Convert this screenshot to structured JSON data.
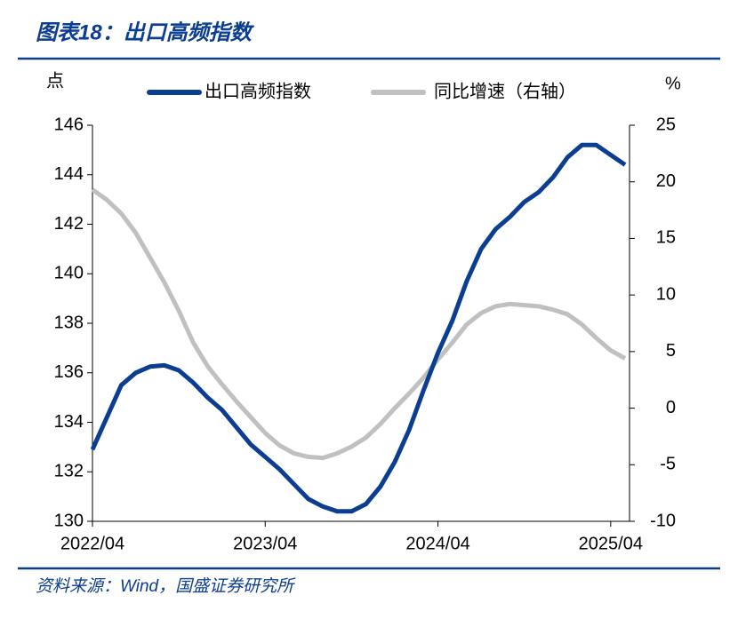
{
  "chart_data": {
    "type": "line",
    "title": "图表18：出口高频指数",
    "source": "资料来源：Wind，国盛证券研究所",
    "ylabel": "点",
    "y2label": "%",
    "x": [
      "2022/04",
      "2022/05",
      "2022/06",
      "2022/07",
      "2022/08",
      "2022/09",
      "2022/10",
      "2022/11",
      "2022/12",
      "2023/01",
      "2023/02",
      "2023/03",
      "2023/04",
      "2023/05",
      "2023/06",
      "2023/07",
      "2023/08",
      "2023/09",
      "2023/10",
      "2023/11",
      "2023/12",
      "2024/01",
      "2024/02",
      "2024/03",
      "2024/04",
      "2024/05",
      "2024/06",
      "2024/07",
      "2024/08",
      "2024/09",
      "2024/10",
      "2024/11",
      "2024/12",
      "2025/01",
      "2025/02",
      "2025/03",
      "2025/04",
      "2025/05"
    ],
    "xticks": [
      "2022/04",
      "2023/04",
      "2024/04",
      "2025/04"
    ],
    "series": [
      {
        "name": "出口高频指数",
        "color": "#0b3d91",
        "values": [
          132.9,
          134.2,
          135.5,
          136.0,
          136.25,
          136.3,
          136.1,
          135.6,
          135.0,
          134.5,
          133.8,
          133.1,
          132.6,
          132.1,
          131.5,
          130.9,
          130.6,
          130.4,
          130.4,
          130.7,
          131.4,
          132.4,
          133.7,
          135.3,
          136.8,
          138.1,
          139.7,
          141.0,
          141.8,
          142.3,
          142.9,
          143.3,
          143.9,
          144.7,
          145.2,
          145.2,
          144.8,
          144.4
        ]
      },
      {
        "name": "同比增速（右轴）",
        "color": "#c0c0c0",
        "axis": "y2",
        "values": [
          19.3,
          18.4,
          17.2,
          15.5,
          13.3,
          11.1,
          8.6,
          5.8,
          3.7,
          2.1,
          0.6,
          -0.8,
          -2.2,
          -3.3,
          -4.0,
          -4.3,
          -4.4,
          -4.0,
          -3.4,
          -2.6,
          -1.4,
          0.0,
          1.3,
          2.7,
          4.3,
          5.8,
          7.4,
          8.4,
          9.0,
          9.2,
          9.1,
          9.0,
          8.7,
          8.3,
          7.4,
          6.2,
          5.1,
          4.4
        ]
      }
    ],
    "ylim": [
      130,
      146
    ],
    "yticks": [
      130,
      132,
      134,
      136,
      138,
      140,
      142,
      144,
      146
    ],
    "y2lim": [
      -10,
      25
    ],
    "y2ticks": [
      -10,
      -5,
      0,
      5,
      10,
      15,
      20,
      25
    ]
  }
}
